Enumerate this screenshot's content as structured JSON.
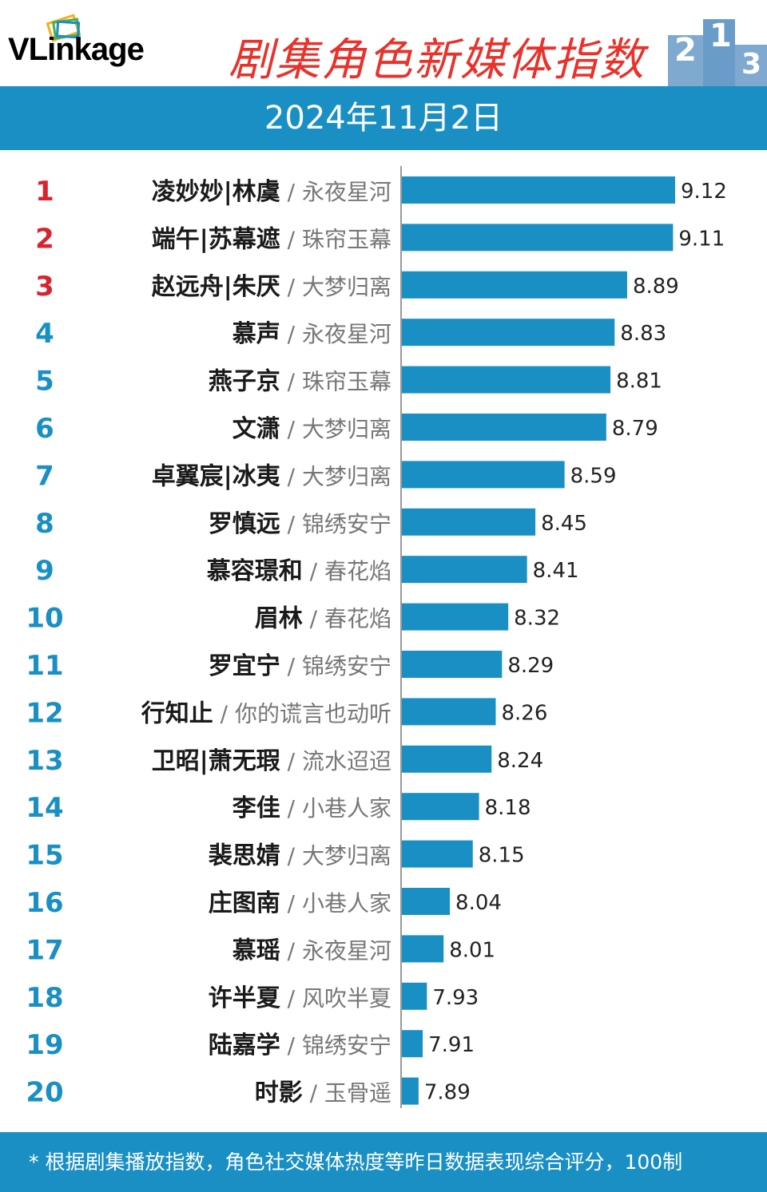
{
  "header": {
    "logo_text": "VLinkage",
    "title": "剧集角色新媒体指数"
  },
  "date": "2024年11月2日",
  "footer": {
    "note": "* 根据剧集播放指数，角色社交媒体热度等昨日数据表现综合评分，100制"
  },
  "colors": {
    "bar": "#1a8fc4",
    "rank_top": "#d9232e",
    "rank_other": "#1a8fc4",
    "title": "#e8322b"
  },
  "chart_data": {
    "type": "bar",
    "orientation": "horizontal",
    "separator": " / ",
    "categories": [
      {
        "rank": "1",
        "role": "凌妙妙|林虞",
        "drama": "永夜星河"
      },
      {
        "rank": "2",
        "role": "端午|苏幕遮",
        "drama": "珠帘玉幕"
      },
      {
        "rank": "3",
        "role": "赵远舟|朱厌",
        "drama": "大梦归离"
      },
      {
        "rank": "4",
        "role": "慕声",
        "drama": "永夜星河"
      },
      {
        "rank": "5",
        "role": "燕子京",
        "drama": "珠帘玉幕"
      },
      {
        "rank": "6",
        "role": "文潇",
        "drama": "大梦归离"
      },
      {
        "rank": "7",
        "role": "卓翼宸|冰夷",
        "drama": "大梦归离"
      },
      {
        "rank": "8",
        "role": "罗慎远",
        "drama": "锦绣安宁"
      },
      {
        "rank": "9",
        "role": "慕容璟和",
        "drama": "春花焰"
      },
      {
        "rank": "10",
        "role": "眉林",
        "drama": "春花焰"
      },
      {
        "rank": "11",
        "role": "罗宜宁",
        "drama": "锦绣安宁"
      },
      {
        "rank": "12",
        "role": "行知止",
        "drama": "你的谎言也动听"
      },
      {
        "rank": "13",
        "role": "卫昭|萧无瑕",
        "drama": "流水迢迢"
      },
      {
        "rank": "14",
        "role": "李佳",
        "drama": "小巷人家"
      },
      {
        "rank": "15",
        "role": "裴思婧",
        "drama": "大梦归离"
      },
      {
        "rank": "16",
        "role": "庄图南",
        "drama": "小巷人家"
      },
      {
        "rank": "17",
        "role": "慕瑶",
        "drama": "永夜星河"
      },
      {
        "rank": "18",
        "role": "许半夏",
        "drama": "风吹半夏"
      },
      {
        "rank": "19",
        "role": "陆嘉学",
        "drama": "锦绣安宁"
      },
      {
        "rank": "20",
        "role": "时影",
        "drama": "玉骨遥"
      }
    ],
    "values": [
      9.12,
      9.11,
      8.89,
      8.83,
      8.81,
      8.79,
      8.59,
      8.45,
      8.41,
      8.32,
      8.29,
      8.26,
      8.24,
      8.18,
      8.15,
      8.04,
      8.01,
      7.93,
      7.91,
      7.89
    ],
    "value_labels": [
      "9.12",
      "9.11",
      "8.89",
      "8.83",
      "8.81",
      "8.79",
      "8.59",
      "8.45",
      "8.41",
      "8.32",
      "8.29",
      "8.26",
      "8.24",
      "8.18",
      "8.15",
      "8.04",
      "8.01",
      "7.93",
      "7.91",
      "7.89"
    ],
    "xlim": [
      7.81,
      9.12
    ],
    "grid": false,
    "legend": "none"
  }
}
